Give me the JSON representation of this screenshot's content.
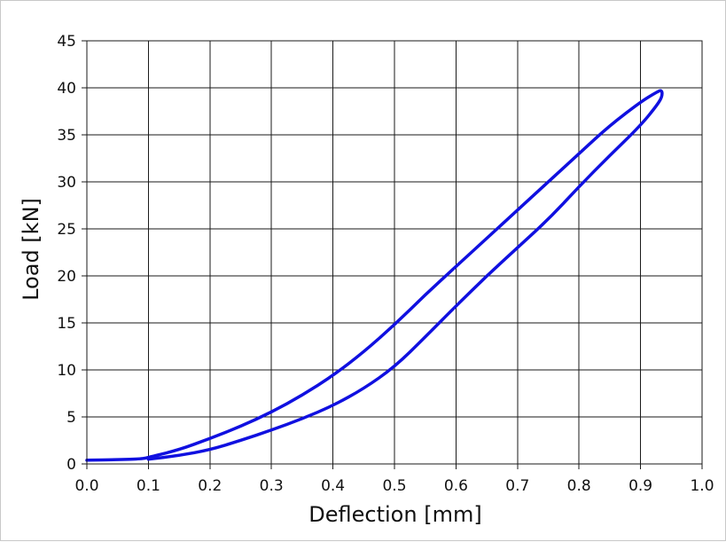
{
  "chart_data": {
    "type": "line",
    "title": "",
    "xlabel": "Deflection [mm]",
    "ylabel": "Load [kN]",
    "xlim": [
      0.0,
      1.0
    ],
    "ylim": [
      0,
      45
    ],
    "x_ticks": [
      "0.0",
      "0.1",
      "0.2",
      "0.3",
      "0.4",
      "0.5",
      "0.6",
      "0.7",
      "0.8",
      "0.9",
      "1.0"
    ],
    "y_ticks": [
      "0",
      "5",
      "10",
      "15",
      "20",
      "25",
      "30",
      "35",
      "40",
      "45"
    ],
    "grid": true,
    "legend": "none",
    "series_color": "#1010e0",
    "series": [
      {
        "x": [
          0.0,
          0.05,
          0.09,
          0.1,
          0.15,
          0.2,
          0.25,
          0.3,
          0.35,
          0.4,
          0.45,
          0.5,
          0.55,
          0.6,
          0.65,
          0.7,
          0.75,
          0.8,
          0.85,
          0.9,
          0.925,
          0.935,
          0.935,
          0.925,
          0.9,
          0.85,
          0.8,
          0.75,
          0.7,
          0.65,
          0.6,
          0.55,
          0.5,
          0.45,
          0.4,
          0.35,
          0.3,
          0.25,
          0.2,
          0.15,
          0.1
        ],
        "y": [
          0.4,
          0.45,
          0.55,
          0.7,
          1.5,
          2.7,
          4.0,
          5.5,
          7.3,
          9.4,
          11.9,
          14.8,
          18.0,
          21.0,
          24.0,
          27.0,
          30.0,
          33.0,
          36.0,
          38.5,
          39.5,
          39.8,
          39.0,
          38.0,
          36.0,
          32.8,
          29.5,
          26.0,
          23.0,
          20.0,
          16.8,
          13.5,
          10.3,
          8.0,
          6.2,
          4.8,
          3.6,
          2.5,
          1.5,
          0.9,
          0.5
        ]
      }
    ]
  }
}
